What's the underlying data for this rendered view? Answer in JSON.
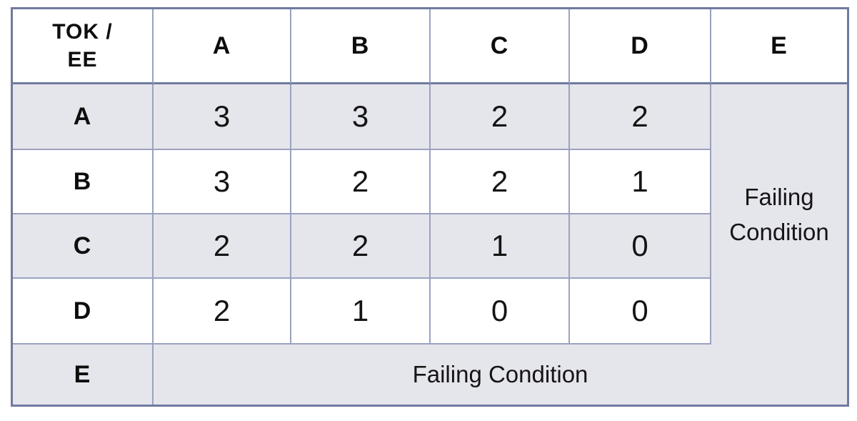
{
  "chart_data": {
    "type": "table",
    "description": "TOK / EE points matrix with failing condition regions",
    "corner_label": "TOK /\nEE",
    "column_headers": [
      "A",
      "B",
      "C",
      "D",
      "E"
    ],
    "rows": [
      {
        "header": "A",
        "values": [
          3,
          3,
          2,
          2
        ]
      },
      {
        "header": "B",
        "values": [
          3,
          2,
          2,
          1
        ]
      },
      {
        "header": "C",
        "values": [
          2,
          2,
          1,
          0
        ]
      },
      {
        "header": "D",
        "values": [
          2,
          1,
          0,
          0
        ]
      },
      {
        "header": "E"
      }
    ],
    "failing_condition_column_label": "Failing Condition",
    "failing_condition_row_label": "Failing Condition",
    "layout_hints": {
      "column_E_rows_A_to_D": "merged gray cell labeled Failing Condition",
      "row_E_columns_A_to_E": "merged gray cell labeled Failing Condition, joined seamlessly with column E region (L-shape)",
      "banded_rows_gray": [
        "A",
        "C",
        "E"
      ],
      "banded_rows_white": [
        "header",
        "B",
        "D"
      ]
    }
  },
  "colors": {
    "band_fill": "#E5E5EC",
    "grid_line": "#9AA2BF",
    "heavy_line": "#6F7A9E",
    "text": "#111111",
    "background": "#FFFFFF"
  }
}
